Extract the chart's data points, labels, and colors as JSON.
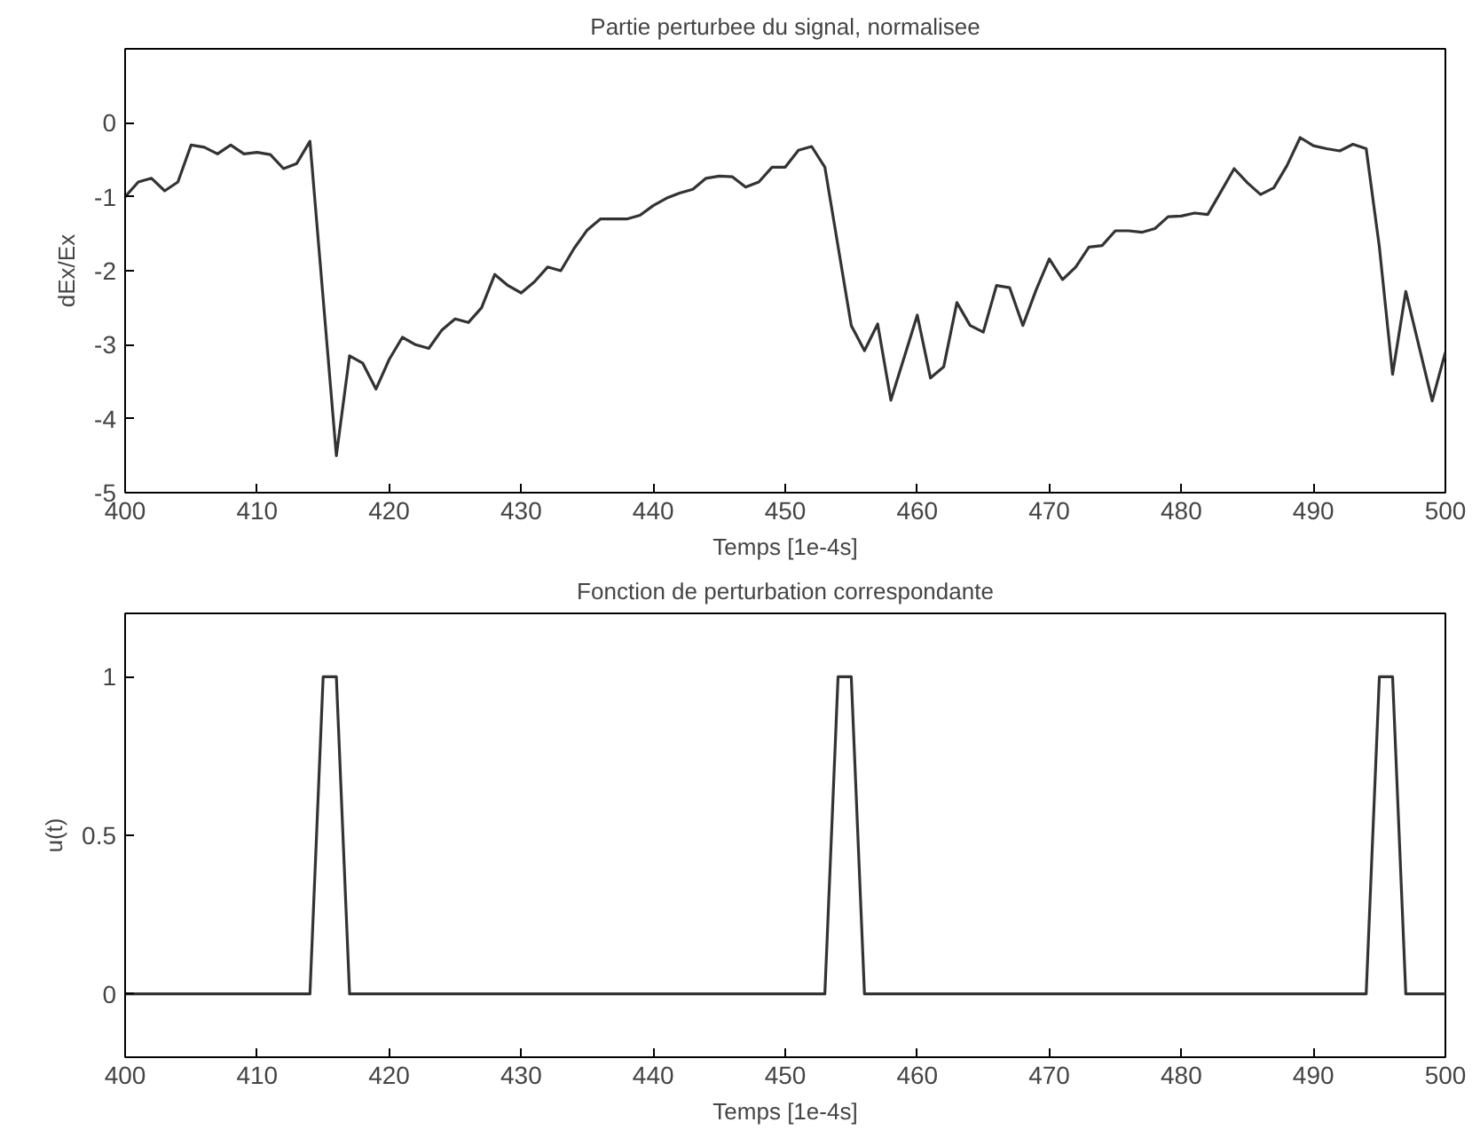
{
  "chart_data": [
    {
      "type": "line",
      "title": "Partie perturbee du signal, normalisee",
      "xlabel": "Temps [1e-4s]",
      "ylabel": "dEx/Ex",
      "x": [
        400,
        401,
        402,
        403,
        404,
        405,
        406,
        407,
        408,
        409,
        410,
        411,
        412,
        413,
        414,
        416,
        417,
        418,
        419,
        420,
        421,
        422,
        423,
        424,
        425,
        426,
        427,
        428,
        429,
        430,
        431,
        432,
        433,
        434,
        435,
        436,
        437,
        438,
        439,
        440,
        441,
        442,
        443,
        444,
        445,
        446,
        447,
        448,
        449,
        450,
        451,
        452,
        453,
        455,
        456,
        457,
        458,
        460,
        461,
        462,
        463,
        464,
        465,
        466,
        467,
        468,
        469,
        470,
        471,
        472,
        473,
        474,
        475,
        476,
        477,
        478,
        479,
        480,
        481,
        482,
        483,
        484,
        485,
        486,
        487,
        488,
        489,
        490,
        491,
        492,
        493,
        494,
        495,
        496,
        497,
        499,
        500
      ],
      "series": [
        {
          "color": "#333333",
          "values": [
            -1.0,
            -0.8,
            -0.75,
            -0.92,
            -0.8,
            -0.3,
            -0.33,
            -0.42,
            -0.3,
            -0.42,
            -0.4,
            -0.43,
            -0.62,
            -0.55,
            -0.25,
            -4.5,
            -3.15,
            -3.25,
            -3.6,
            -3.2,
            -2.9,
            -3.0,
            -3.05,
            -2.8,
            -2.65,
            -2.7,
            -2.5,
            -2.05,
            -2.2,
            -2.3,
            -2.15,
            -1.95,
            -2.0,
            -1.7,
            -1.45,
            -1.3,
            -1.3,
            -1.3,
            -1.25,
            -1.12,
            -1.02,
            -0.95,
            -0.9,
            -0.75,
            -0.72,
            -0.73,
            -0.87,
            -0.8,
            -0.6,
            -0.6,
            -0.37,
            -0.32,
            -0.6,
            -2.74,
            -3.08,
            -2.72,
            -3.75,
            -2.6,
            -3.45,
            -3.3,
            -2.43,
            -2.74,
            -2.83,
            -2.2,
            -2.23,
            -2.74,
            -2.26,
            -1.84,
            -2.12,
            -1.95,
            -1.68,
            -1.66,
            -1.46,
            -1.46,
            -1.48,
            -1.43,
            -1.27,
            -1.26,
            -1.22,
            -1.24,
            -0.93,
            -0.62,
            -0.81,
            -0.97,
            -0.88,
            -0.58,
            -0.2,
            -0.31,
            -0.35,
            -0.38,
            -0.29,
            -0.35,
            -1.68,
            -3.4,
            -2.28,
            -3.76,
            -3.1
          ]
        }
      ],
      "xlim": [
        400,
        500
      ],
      "xticks": [
        400,
        410,
        420,
        430,
        440,
        450,
        460,
        470,
        480,
        490,
        500
      ],
      "ylim": [
        -5,
        1
      ],
      "yticks": [
        -5,
        -4,
        -3,
        -2,
        -1,
        0
      ],
      "grid": false
    },
    {
      "type": "line",
      "title": "Fonction de perturbation correspondante",
      "xlabel": "Temps [1e-4s]",
      "ylabel": "u(t)",
      "x": [
        400,
        414,
        415,
        416,
        417,
        453,
        454,
        455,
        456,
        494,
        495,
        496,
        497,
        500
      ],
      "series": [
        {
          "color": "#333333",
          "values": [
            0,
            0,
            1,
            1,
            0,
            0,
            1,
            1,
            0,
            0,
            1,
            1,
            0,
            0
          ]
        }
      ],
      "xlim": [
        400,
        500
      ],
      "xticks": [
        400,
        410,
        420,
        430,
        440,
        450,
        460,
        470,
        480,
        490,
        500
      ],
      "ylim": [
        -0.2,
        1.2
      ],
      "yticks": [
        0,
        0.5,
        1
      ],
      "grid": false
    }
  ]
}
